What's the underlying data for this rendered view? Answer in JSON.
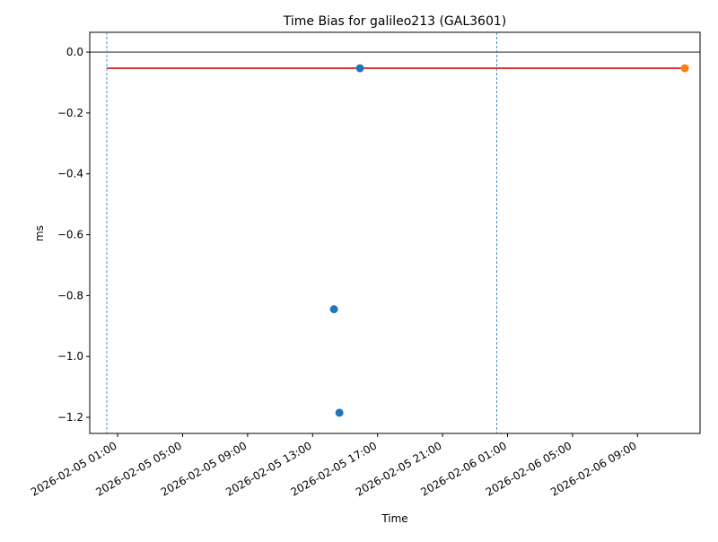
{
  "chart_data": {
    "type": "scatter",
    "title": "Time Bias for galileo213 (GAL3601)",
    "xlabel": "Time",
    "ylabel": "ms",
    "xlim": [
      "2026-02-04 23:17",
      "2026-02-06 12:51"
    ],
    "xticks": [
      "2026-02-05 01:00",
      "2026-02-05 05:00",
      "2026-02-05 09:00",
      "2026-02-05 13:00",
      "2026-02-05 17:00",
      "2026-02-05 21:00",
      "2026-02-06 01:00",
      "2026-02-06 05:00",
      "2026-02-06 09:00"
    ],
    "ylim": [
      -1.253,
      0.065
    ],
    "yticks": [
      {
        "value": 0,
        "label": "0.0"
      },
      {
        "value": -0.2,
        "label": "−0.2"
      },
      {
        "value": -0.4,
        "label": "−0.4"
      },
      {
        "value": -0.6,
        "label": "−0.6"
      },
      {
        "value": -0.8,
        "label": "−0.8"
      },
      {
        "value": -1.0,
        "label": "−1.0"
      },
      {
        "value": -1.2,
        "label": "−1.2"
      }
    ],
    "hline": 0,
    "vlines": {
      "x": [
        "2026-02-05 00:20",
        "2026-02-06 00:20"
      ],
      "color": "#1f77b4"
    },
    "line": {
      "color": "#e41a1c",
      "x": [
        "2026-02-05 00:20",
        "2026-02-06 11:55"
      ],
      "values": [
        -0.053,
        -0.053
      ]
    },
    "series": [
      {
        "color": "#1f77b4",
        "x": [
          "2026-02-05 15:55",
          "2026-02-05 14:19",
          "2026-02-05 14:39"
        ],
        "values": [
          -0.053,
          -0.845,
          -1.185
        ]
      },
      {
        "color": "#ff7f0e",
        "x": [
          "2026-02-06 11:55"
        ],
        "values": [
          -0.053
        ]
      }
    ]
  }
}
